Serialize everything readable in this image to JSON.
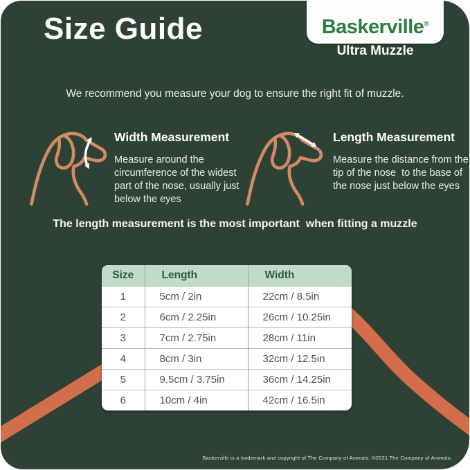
{
  "colors": {
    "panel": "#2d4234",
    "accent": "#d26e4b",
    "dog_outline": "#d48a66",
    "logo_green": "#2e7d3e",
    "table_header_bg": "#c0dbc8",
    "table_header_text": "#2c5a42"
  },
  "header": {
    "title": "Size Guide",
    "brand": "Baskerville",
    "registered_mark": "®",
    "subtitle": "Ultra Muzzle"
  },
  "intro": "We recommend you measure your dog to ensure the right fit of muzzle.",
  "width_section": {
    "heading": "Width Measurement",
    "body": "Measure around the\ncircumference of the widest\npart of the nose, usually just\nbelow the eyes"
  },
  "length_section": {
    "heading": "Length Measurement",
    "body": "Measure the distance from the\ntip of the nose  to the base of\nthe nose just below the eyes"
  },
  "note": "The length measurement is the most important  when fitting a muzzle",
  "table": {
    "headers": [
      "Size",
      "Length",
      "Width"
    ],
    "rows": [
      [
        "1",
        "5cm / 2in",
        "22cm / 8.5in"
      ],
      [
        "2",
        "6cm / 2.25in",
        "26cm / 10.25in"
      ],
      [
        "3",
        "7cm / 2.75in",
        "28cm / 11in"
      ],
      [
        "4",
        "8cm / 3in",
        "32cm / 12.5in"
      ],
      [
        "5",
        "9.5cm / 3.75in",
        "36cm / 14.25in"
      ],
      [
        "6",
        "10cm / 4in",
        "42cm / 16.5in"
      ]
    ]
  },
  "footer": "Baskerville is a trademark and copyright of The Company of Animals. ©2021 The Company of Animals."
}
